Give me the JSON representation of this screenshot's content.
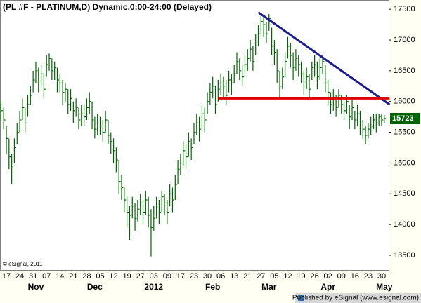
{
  "chart_data": {
    "type": "ohlc",
    "title": "(PL #F - PLATINUM,D) Dynamic,0:00-24:00 (Delayed)",
    "credit": "© eSignal, 2011",
    "footer": "Published by eSignal (www.esignal.com)",
    "color": "#006400",
    "ylim": [
      13260,
      17650
    ],
    "yticks": [
      13500,
      14000,
      14500,
      15000,
      15500,
      16000,
      16500,
      17000,
      17500
    ],
    "categories": [
      null,
      null,
      "17",
      null,
      null,
      null,
      null,
      "24",
      null,
      null,
      null,
      null,
      "31",
      null,
      null,
      null,
      null,
      "07",
      null,
      null,
      null,
      null,
      "14",
      null,
      null,
      null,
      null,
      "21",
      null,
      null,
      null,
      null,
      "28",
      null,
      null,
      null,
      null,
      "05",
      null,
      null,
      null,
      null,
      "12",
      null,
      null,
      null,
      null,
      "19",
      null,
      null,
      null,
      null,
      "27",
      null,
      null,
      null,
      null,
      "03",
      null,
      null,
      null,
      null,
      "09",
      null,
      null,
      null,
      null,
      "17",
      null,
      null,
      null,
      null,
      "23",
      null,
      null,
      null,
      null,
      "30",
      null,
      null,
      null,
      null,
      "06",
      null,
      null,
      null,
      null,
      "13",
      null,
      null,
      null,
      null,
      "21",
      null,
      null,
      null,
      null,
      "27",
      null,
      null,
      null,
      null,
      "05",
      null,
      null,
      null,
      null,
      "12",
      null,
      null,
      null,
      null,
      "19",
      null,
      null,
      null,
      null,
      "26",
      null,
      null,
      null,
      null,
      "02",
      null,
      null,
      null,
      null,
      "09",
      null,
      null,
      null,
      null,
      "16",
      null,
      null,
      null,
      null,
      "23",
      null,
      null,
      null,
      null,
      "30",
      null
    ],
    "months": [
      null,
      null,
      null,
      null,
      null,
      null,
      null,
      null,
      null,
      null,
      null,
      null,
      null,
      "Nov",
      null,
      null,
      null,
      null,
      null,
      null,
      null,
      null,
      null,
      null,
      null,
      null,
      null,
      null,
      null,
      null,
      null,
      null,
      null,
      null,
      null,
      "Dec",
      null,
      null,
      null,
      null,
      null,
      null,
      null,
      null,
      null,
      null,
      null,
      null,
      null,
      null,
      null,
      null,
      null,
      null,
      null,
      null,
      null,
      "2012",
      null,
      null,
      null,
      null,
      null,
      null,
      null,
      null,
      null,
      null,
      null,
      null,
      null,
      null,
      null,
      null,
      null,
      null,
      null,
      null,
      null,
      "Feb",
      null,
      null,
      null,
      null,
      null,
      null,
      null,
      null,
      null,
      null,
      null,
      null,
      null,
      null,
      null,
      null,
      null,
      null,
      null,
      null,
      "Mar",
      null,
      null,
      null,
      null,
      null,
      null,
      null,
      null,
      null,
      null,
      null,
      null,
      null,
      null,
      null,
      null,
      null,
      null,
      null,
      null,
      null,
      "Apr",
      null,
      null,
      null,
      null,
      null,
      null,
      null,
      null,
      null,
      null,
      null,
      null,
      null,
      null,
      null,
      null,
      null,
      null,
      null,
      null,
      "May"
    ],
    "high": [
      16000,
      15900,
      15600,
      15400,
      15150,
      15400,
      15650,
      15850,
      16050,
      15900,
      16100,
      16250,
      16500,
      16650,
      16550,
      16600,
      16450,
      16750,
      16780,
      16700,
      16650,
      16550,
      16450,
      16350,
      16300,
      16200,
      16200,
      16000,
      16050,
      15900,
      15950,
      15950,
      16050,
      16150,
      16000,
      15750,
      15800,
      15750,
      15700,
      15850,
      15700,
      15500,
      15400,
      15250,
      15050,
      14800,
      14600,
      14450,
      14300,
      14450,
      14350,
      14400,
      14500,
      14400,
      14550,
      14450,
      14250,
      14300,
      14450,
      14400,
      14550,
      14500,
      14400,
      14650,
      14600,
      14800,
      15050,
      15150,
      15350,
      15300,
      15500,
      15400,
      15650,
      15800,
      15750,
      15950,
      15900,
      16150,
      16300,
      16400,
      16250,
      16350,
      16450,
      16400,
      16350,
      16500,
      16450,
      16600,
      16800,
      16700,
      16600,
      16750,
      16850,
      17000,
      16900,
      17100,
      17250,
      17400,
      17380,
      17300,
      17420,
      17200,
      17000,
      16850,
      16500,
      16550,
      16800,
      17050,
      16950,
      16800,
      16850,
      16750,
      16650,
      16500,
      16550,
      16450,
      16650,
      16750,
      16650,
      16700,
      16750,
      16600,
      16350,
      16150,
      16200,
      16100,
      16200,
      16100,
      16000,
      16100,
      15950,
      16050,
      15850,
      15950,
      15850,
      15700,
      15600,
      15650,
      15750,
      15800,
      15800,
      15800,
      15800,
      15780
    ],
    "low": [
      15700,
      15550,
      15150,
      14900,
      14650,
      15000,
      15300,
      15500,
      15700,
      15500,
      15750,
      15950,
      16150,
      16300,
      16150,
      16250,
      16050,
      16400,
      16500,
      16350,
      16350,
      16150,
      16150,
      15950,
      16000,
      15800,
      15850,
      15650,
      15750,
      15550,
      15600,
      15600,
      15700,
      15800,
      15550,
      15400,
      15450,
      15450,
      15350,
      15500,
      15300,
      15150,
      15000,
      14850,
      14500,
      14400,
      14200,
      13950,
      13750,
      14100,
      13900,
      14050,
      14150,
      14000,
      14150,
      13950,
      13480,
      13900,
      14100,
      14000,
      14200,
      14150,
      14000,
      14300,
      14200,
      14400,
      14650,
      14800,
      14950,
      14900,
      15100,
      15050,
      15300,
      15450,
      15350,
      15550,
      15500,
      15800,
      15950,
      16050,
      15800,
      16000,
      16100,
      16050,
      15950,
      16150,
      16100,
      16300,
      16450,
      16350,
      16250,
      16400,
      16500,
      16650,
      16500,
      16750,
      16900,
      17100,
      17050,
      16950,
      17150,
      16750,
      16600,
      16300,
      16050,
      16200,
      16400,
      16700,
      16550,
      16350,
      16500,
      16400,
      16300,
      16100,
      16200,
      16050,
      16350,
      16400,
      16200,
      16350,
      16450,
      16150,
      15950,
      15800,
      15850,
      15750,
      15900,
      15800,
      15700,
      15800,
      15550,
      15700,
      15550,
      15600,
      15450,
      15400,
      15300,
      15400,
      15450,
      15550,
      15500,
      15600,
      15600,
      15650
    ],
    "close": [
      15850,
      15700,
      15400,
      15100,
      14950,
      15250,
      15500,
      15700,
      15900,
      15650,
      15950,
      16100,
      16350,
      16500,
      16300,
      16450,
      16200,
      16600,
      16700,
      16500,
      16550,
      16350,
      16300,
      16150,
      16200,
      15950,
      16050,
      15850,
      15900,
      15700,
      15800,
      15750,
      15900,
      16000,
      15700,
      15550,
      15650,
      15600,
      15500,
      15700,
      15450,
      15350,
      15200,
      15050,
      14700,
      14600,
      14400,
      14200,
      14150,
      14300,
      14100,
      14250,
      14350,
      14200,
      14400,
      14150,
      13950,
      14100,
      14300,
      14200,
      14450,
      14350,
      14200,
      14500,
      14400,
      14650,
      14900,
      15000,
      15200,
      15100,
      15350,
      15250,
      15500,
      15650,
      15550,
      15800,
      15700,
      16000,
      16150,
      16250,
      15950,
      16200,
      16300,
      16250,
      16100,
      16350,
      16300,
      16450,
      16650,
      16500,
      16400,
      16600,
      16700,
      16850,
      16650,
      16950,
      17100,
      17300,
      17250,
      17100,
      17350,
      16900,
      16800,
      16500,
      16250,
      16400,
      16650,
      16900,
      16750,
      16550,
      16700,
      16600,
      16450,
      16300,
      16400,
      16200,
      16550,
      16600,
      16400,
      16550,
      16650,
      16300,
      16150,
      15950,
      16050,
      15900,
      16100,
      15950,
      15850,
      16000,
      15750,
      15900,
      15700,
      15800,
      15650,
      15550,
      15450,
      15550,
      15600,
      15700,
      15650,
      15750,
      15700,
      15723
    ],
    "lines": [
      {
        "color": "#1c1c8a",
        "x": [
          96,
          145
        ],
        "y": [
          17450,
          15950
        ]
      },
      {
        "color": "#e00000",
        "x": [
          81,
          145
        ],
        "y": [
          16050,
          16050
        ]
      }
    ]
  }
}
